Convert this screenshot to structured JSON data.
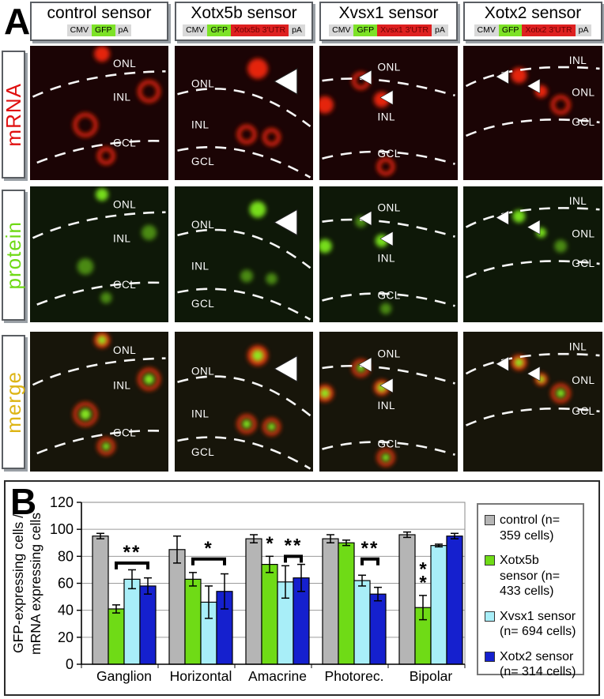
{
  "panelA": {
    "label": "A",
    "columns": [
      {
        "title": "control sensor",
        "construct": [
          {
            "text": "CMV",
            "style": "gray"
          },
          {
            "text": "GFP",
            "style": "green"
          },
          {
            "text": "pA",
            "style": "gray"
          }
        ]
      },
      {
        "title": "Xotx5b sensor",
        "construct": [
          {
            "text": "CMV",
            "style": "gray"
          },
          {
            "text": "GFP",
            "style": "green"
          },
          {
            "text": "Xotx5b 3'UTR",
            "style": "red"
          },
          {
            "text": "pA",
            "style": "gray"
          }
        ]
      },
      {
        "title": "Xvsx1 sensor",
        "construct": [
          {
            "text": "CMV",
            "style": "gray"
          },
          {
            "text": "GFP",
            "style": "green"
          },
          {
            "text": "Xvsx1 3'UTR",
            "style": "red"
          },
          {
            "text": "pA",
            "style": "gray"
          }
        ]
      },
      {
        "title": "Xotx2 sensor",
        "construct": [
          {
            "text": "CMV",
            "style": "gray"
          },
          {
            "text": "GFP",
            "style": "green"
          },
          {
            "text": "Xotx2 3'UTR",
            "style": "red"
          },
          {
            "text": "pA",
            "style": "gray"
          }
        ]
      }
    ],
    "rows": [
      {
        "label": "mRNA",
        "color": "#e01010"
      },
      {
        "label": "protein",
        "color": "#6fd916"
      },
      {
        "label": "merge",
        "color": "#ddb414"
      }
    ],
    "cells": [
      [
        {
          "layers": [
            "ONL",
            "INL",
            "GCL"
          ],
          "arrowheads": 0
        },
        {
          "layers": [
            "ONL",
            "INL",
            "GCL"
          ],
          "arrowheads": 1
        },
        {
          "layers": [
            "ONL",
            "INL",
            "GCL"
          ],
          "arrowheads": 2
        },
        {
          "layers": [
            "INL",
            "ONL",
            "GCL"
          ],
          "arrowheads": 2
        }
      ],
      [
        {
          "layers": [
            "ONL",
            "INL",
            "GCL"
          ],
          "arrowheads": 0
        },
        {
          "layers": [
            "ONL",
            "INL",
            "GCL"
          ],
          "arrowheads": 1
        },
        {
          "layers": [
            "ONL",
            "INL",
            "GCL"
          ],
          "arrowheads": 2
        },
        {
          "layers": [
            "INL",
            "ONL",
            "GCL"
          ],
          "arrowheads": 2
        }
      ],
      [
        {
          "layers": [
            "ONL",
            "INL",
            "GCL"
          ],
          "arrowheads": 0
        },
        {
          "layers": [
            "ONL",
            "INL",
            "GCL"
          ],
          "arrowheads": 1
        },
        {
          "layers": [
            "ONL",
            "INL",
            "GCL"
          ],
          "arrowheads": 2
        },
        {
          "layers": [
            "INL",
            "ONL",
            "GCL"
          ],
          "arrowheads": 2
        }
      ]
    ]
  },
  "panelB": {
    "label": "B"
  },
  "chart_data": {
    "type": "bar",
    "title": "",
    "xlabel": "",
    "ylabel_line1": "GFP-expressing cells /",
    "ylabel_line2": "mRNA expressing cells",
    "categories": [
      "Ganglion",
      "Horizontal",
      "Amacrine",
      "Photorec.",
      "Bipolar"
    ],
    "series": [
      {
        "name": "control (n= 359 cells)",
        "color": "#b5b5b5",
        "values": [
          95,
          85,
          93,
          93,
          96
        ],
        "errors": [
          2,
          10,
          3,
          3,
          2
        ]
      },
      {
        "name": "Xotx5b sensor (n= 433 cells)",
        "color": "#6fdb16",
        "values": [
          41,
          63,
          74,
          90,
          42
        ],
        "errors": [
          3,
          5,
          6,
          2,
          9
        ]
      },
      {
        "name": "Xvsx1 sensor (n= 694 cells)",
        "color": "#a8eef8",
        "values": [
          63,
          46,
          61,
          62,
          88
        ],
        "errors": [
          7,
          12,
          12,
          4,
          1
        ]
      },
      {
        "name": "Xotx2 sensor (n= 314 cells)",
        "color": "#1520ce",
        "values": [
          58,
          54,
          64,
          52,
          95
        ],
        "errors": [
          6,
          13,
          10,
          5,
          2
        ]
      }
    ],
    "ylim": [
      0,
      120
    ],
    "yticks": [
      0,
      20,
      40,
      60,
      80,
      100,
      120
    ],
    "grid": true,
    "legend_position": "right",
    "annotations": [
      {
        "category": 0,
        "kind": "bracket",
        "from": 1,
        "to": 3,
        "text": "**",
        "y": 75
      },
      {
        "category": 1,
        "kind": "bracket",
        "from": 1,
        "to": 3,
        "text": "*",
        "y": 78
      },
      {
        "category": 2,
        "kind": "star",
        "bar": 1,
        "text": "*",
        "y": 85
      },
      {
        "category": 2,
        "kind": "bracket",
        "from": 2,
        "to": 3,
        "text": "**",
        "y": 80
      },
      {
        "category": 3,
        "kind": "bracket",
        "from": 2,
        "to": 3,
        "text": "**",
        "y": 78
      },
      {
        "category": 4,
        "kind": "star-stacked",
        "bar": 1,
        "text": "**",
        "y": 66
      }
    ]
  }
}
